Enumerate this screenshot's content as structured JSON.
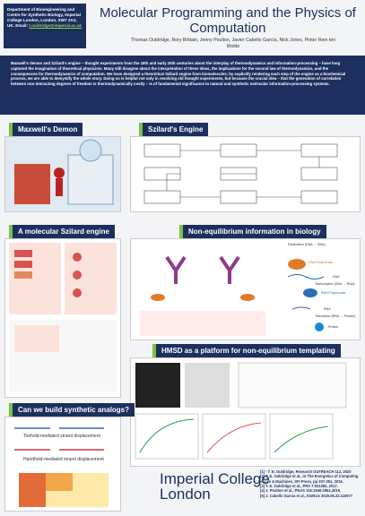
{
  "header": {
    "affiliation": "Department of Bioengineering and Centre for Synthetic Biology, Imperial College London, London, SW7 2AZ, UK. Email:",
    "email": "t.ouldridge@imperial.ac.uk",
    "title": "Molecular Programming and the Physics of Computation",
    "authors": "Thomas Ouldridge, Rory Brittain, Jenny Poulton, Javier Cabello García, Nick Jones, Pieter Rein ten Wolde"
  },
  "abstract": "Maxwell's demon and Szilard's engine – thought experiments from the 19th and early 20th centuries about the interplay of thermodynamics and information-processing – have long captured the imagination of theoretical physicists. Many still disagree about the interpretation of these ideas, the implications for the second law of thermodynamics, and the consequences for thermodynamics of computation. We have designed a theoretical Szilard engine from biomolecules; by explicitly rendering each step of the engine as a biochemical process, we are able to demystify the whole story. Doing so is helpful not only in resolving old thought experiments, but because the crucial idea – that the generation of correlation between non-interacting degrees of freedom is thermodynamically costly – is of fundamental significance to natural and synthetic molecular information-processing systems.",
  "sections": {
    "maxwell": "Maxwell's Demon",
    "szilard": "Szilard's Engine",
    "molecular": "A molecular Szilard engine",
    "biology": "Non-equilibrium information in biology",
    "synthetic": "Can we build synthetic analogs?",
    "hmsd": "HMSD as a platform for non-equilibrium templating"
  },
  "biology_labels": {
    "replication": "Replication (DNA → DNA)",
    "dna_pol": "DNA Polymerase",
    "dna": "DNA",
    "transcription": "Transcription (DNA → RNA)",
    "rna_pol": "RNA Polymerase",
    "rna": "RNA",
    "translation": "Translation (RNA → Protein)",
    "protein": "Protein"
  },
  "synthetic_labels": {
    "toehold": "Toehold-mediated strand displacement",
    "handhold": "Handhold-mediated strand displacement"
  },
  "references": [
    "[1] - T. E. Ouldridge, Research OUTREACH 112, 2020",
    "[2] T. E. Ouldridge et al., in The Energetics of Computing in Life & Machines, SFI Press, pp 307-351, 2019.",
    "[3] T. E. Ouldridge et al., PRX 7:021082, 2017.",
    "[4] J. Poulton et al., PNAS 116:1946-1951,2019.",
    "[5] J. Cabello Garcia et al., bioRxiv 2020.05.22.110577"
  ],
  "logo": [
    "Imperial College",
    "London"
  ]
}
